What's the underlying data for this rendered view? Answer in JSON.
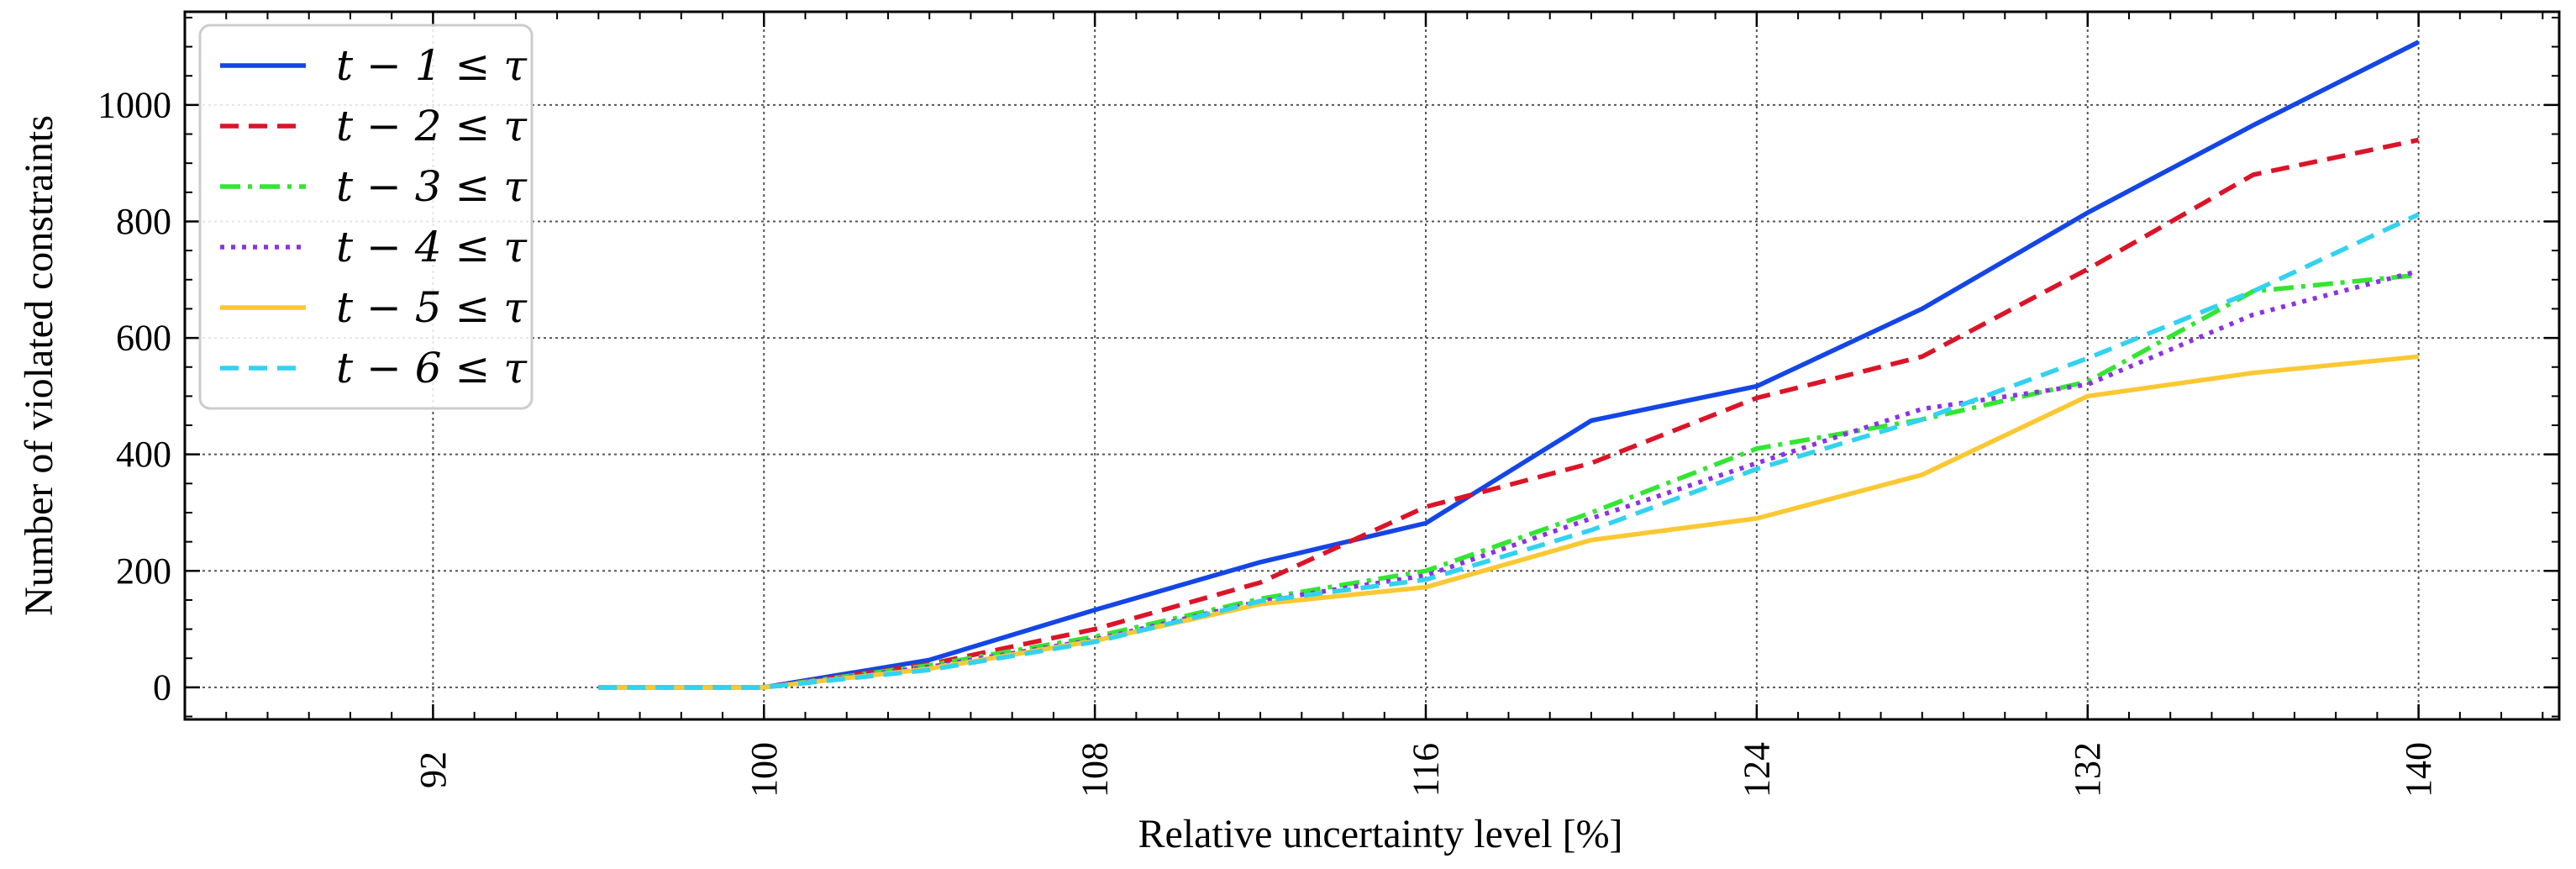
{
  "chart_data": {
    "type": "line",
    "title": "",
    "xlabel": "Relative uncertainty level [%]",
    "ylabel": "Number of violated constraints",
    "xlim": [
      86,
      143.4
    ],
    "ylim": [
      -55,
      1160
    ],
    "xticks": [
      92,
      100,
      108,
      116,
      124,
      132,
      140
    ],
    "yticks": [
      0,
      200,
      400,
      600,
      800,
      1000
    ],
    "x_minor_step": 1,
    "y_minor_step": 50,
    "grid": true,
    "legend_position": "top-left",
    "x": [
      96,
      100,
      104,
      108,
      112,
      116,
      120,
      124,
      128,
      132,
      136,
      140
    ],
    "series": [
      {
        "name": "t − 1 ≤ τ",
        "color": "#1446e6",
        "dash": "solid",
        "values": [
          0,
          0,
          47,
          133,
          215,
          282,
          458,
          517,
          650,
          815,
          965,
          1108
        ]
      },
      {
        "name": "t − 2 ≤ τ",
        "color": "#dc1428",
        "dash": "dashed",
        "values": [
          0,
          0,
          40,
          100,
          180,
          310,
          385,
          497,
          568,
          718,
          880,
          940
        ]
      },
      {
        "name": "t − 3 ≤ τ",
        "color": "#32e632",
        "dash": "dashdot",
        "values": [
          0,
          0,
          38,
          87,
          152,
          200,
          300,
          410,
          460,
          525,
          680,
          708
        ]
      },
      {
        "name": "t − 4 ≤ τ",
        "color": "#8c32e6",
        "dash": "dotted",
        "values": [
          0,
          0,
          35,
          82,
          148,
          192,
          290,
          385,
          478,
          520,
          640,
          715
        ]
      },
      {
        "name": "t − 5 ≤ τ",
        "color": "#fac832",
        "dash": "solid",
        "values": [
          0,
          0,
          32,
          80,
          143,
          172,
          253,
          290,
          365,
          500,
          540,
          568
        ]
      },
      {
        "name": "t − 6 ≤ τ",
        "color": "#32d2f0",
        "dash": "dashed",
        "values": [
          0,
          0,
          30,
          78,
          148,
          185,
          270,
          375,
          460,
          565,
          680,
          812
        ]
      }
    ]
  }
}
